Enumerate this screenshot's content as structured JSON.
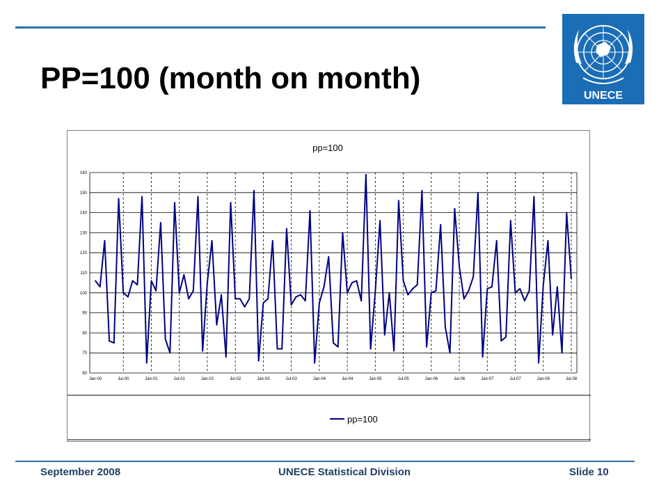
{
  "slide": {
    "title": "PP=100 (month on month)",
    "logo_text": "UNECE",
    "footer_left": "September 2008",
    "footer_center": "UNECE Statistical Division",
    "footer_right": "Slide 10",
    "accent_color": "#2d6fa8",
    "footer_color": "#1f3f66"
  },
  "chart_data": {
    "type": "line",
    "title": "pp=100",
    "xlabel": "",
    "ylabel": "",
    "ylim": [
      60,
      160
    ],
    "yticks": [
      60,
      70,
      80,
      90,
      100,
      110,
      120,
      130,
      140,
      150,
      160
    ],
    "xtick_labels": [
      "Jan-00",
      "Jul-00",
      "Jan-01",
      "Jul-01",
      "Jan-02",
      "Jul-02",
      "Jan-03",
      "Jul-03",
      "Jan-04",
      "Jul-04",
      "Jan-05",
      "Jul-05",
      "Jan-06",
      "Jul-06",
      "Jan-07",
      "Jul-07",
      "Jan-08",
      "Jul-08"
    ],
    "grid": {
      "horizontal": true,
      "vertical_dashed": true
    },
    "legend": "bottom",
    "series": [
      {
        "name": "pp=100",
        "color": "#000080",
        "values": [
          106,
          103,
          126,
          76,
          75,
          147,
          100,
          98,
          106,
          104,
          148,
          65,
          106,
          101,
          135,
          77,
          70,
          145,
          100,
          109,
          97,
          101,
          148,
          71,
          105,
          126,
          84,
          99,
          68,
          145,
          97,
          97,
          93,
          97,
          151,
          66,
          95,
          97,
          126,
          72,
          72,
          132,
          94,
          98,
          99,
          96,
          141,
          65,
          95,
          103,
          118,
          75,
          73,
          130,
          100,
          105,
          106,
          96,
          159,
          72,
          101,
          136,
          79,
          100,
          71,
          146,
          106,
          99,
          102,
          104,
          151,
          73,
          100,
          101,
          134,
          83,
          70,
          142,
          113,
          97,
          101,
          108,
          150,
          68,
          102,
          103,
          126,
          76,
          78,
          136,
          100,
          102,
          96,
          101,
          148,
          65,
          104,
          126,
          79,
          103,
          70,
          140,
          107
        ]
      }
    ]
  }
}
